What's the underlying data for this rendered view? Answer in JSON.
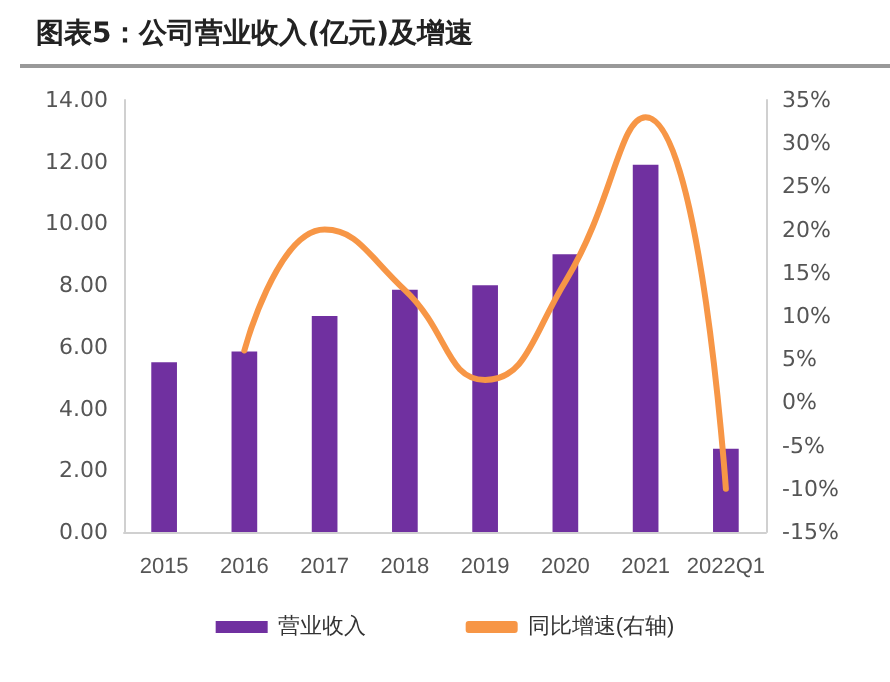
{
  "chart_data": {
    "type": "bar",
    "title": "图表5：公司营业收入(亿元)及增速",
    "categories": [
      "2015",
      "2016",
      "2017",
      "2018",
      "2019",
      "2020",
      "2021",
      "2022Q1"
    ],
    "series": [
      {
        "name": "营业收入",
        "color": "#7030a0",
        "values": [
          5.5,
          5.85,
          7.0,
          7.85,
          8.0,
          9.0,
          11.9,
          2.7
        ]
      },
      {
        "name": "同比增速(右轴)",
        "type": "line",
        "axis": "y2",
        "color": "#f79646",
        "values": [
          null,
          6,
          20,
          13,
          2.6,
          14,
          33,
          -10
        ]
      }
    ],
    "ylim": [
      0,
      14
    ],
    "yticks": [
      {
        "value": 0,
        "label": "0.00"
      },
      {
        "value": 2,
        "label": "2.00"
      },
      {
        "value": 4,
        "label": "4.00"
      },
      {
        "value": 6,
        "label": "6.00"
      },
      {
        "value": 8,
        "label": "8.00"
      },
      {
        "value": 10,
        "label": "10.00"
      },
      {
        "value": 12,
        "label": "12.00"
      },
      {
        "value": 14,
        "label": "14.00"
      }
    ],
    "y2lim": [
      -15,
      35
    ],
    "y2ticks": [
      {
        "value": -15,
        "label": "-15%"
      },
      {
        "value": -10,
        "label": "-10%"
      },
      {
        "value": -5,
        "label": "-5%"
      },
      {
        "value": 0,
        "label": "0%"
      },
      {
        "value": 5,
        "label": "5%"
      },
      {
        "value": 10,
        "label": "10%"
      },
      {
        "value": 15,
        "label": "15%"
      },
      {
        "value": 20,
        "label": "20%"
      },
      {
        "value": 25,
        "label": "25%"
      },
      {
        "value": 30,
        "label": "30%"
      },
      {
        "value": 35,
        "label": "35%"
      }
    ],
    "grid": false,
    "legend": "bottom",
    "marker": "none",
    "line_style": "solid"
  }
}
